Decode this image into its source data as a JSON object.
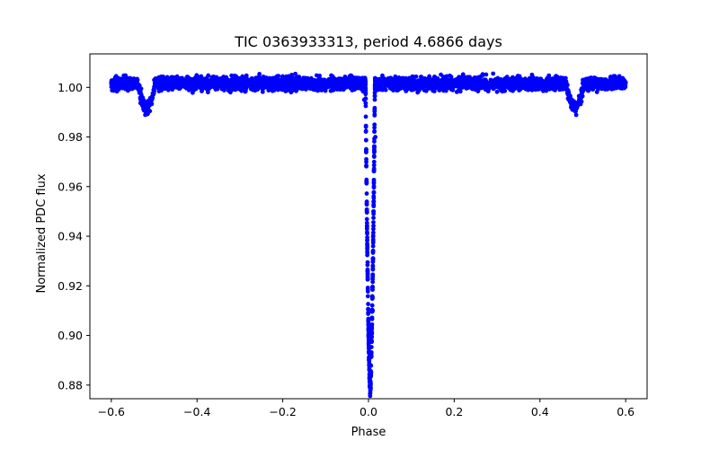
{
  "chart_data": {
    "type": "scatter",
    "title": "TIC 0363933313, period 4.6866 days",
    "xlabel": "Phase",
    "ylabel": "Normalized PDC flux",
    "xlim": [
      -0.65,
      0.65
    ],
    "ylim": [
      0.8745,
      1.0135
    ],
    "x_ticks": [
      {
        "value": -0.6,
        "label": "−0.6"
      },
      {
        "value": -0.4,
        "label": "−0.4"
      },
      {
        "value": -0.2,
        "label": "−0.2"
      },
      {
        "value": 0.0,
        "label": "0.0"
      },
      {
        "value": 0.2,
        "label": "0.2"
      },
      {
        "value": 0.4,
        "label": "0.4"
      },
      {
        "value": 0.6,
        "label": "0.6"
      }
    ],
    "y_ticks": [
      {
        "value": 0.88,
        "label": "0.88"
      },
      {
        "value": 0.9,
        "label": "0.90"
      },
      {
        "value": 0.92,
        "label": "0.92"
      },
      {
        "value": 0.94,
        "label": "0.94"
      },
      {
        "value": 0.96,
        "label": "0.96"
      },
      {
        "value": 0.98,
        "label": "0.98"
      },
      {
        "value": 1.0,
        "label": "1.00"
      }
    ],
    "grid": false,
    "marker_color": "#0000ff",
    "series": [
      {
        "name": "PDC flux",
        "phase_range": [
          -0.6,
          0.6
        ],
        "baseline_flux": 1.0015,
        "noise_amplitude": 0.0022,
        "primary_eclipse": {
          "phase": 0.004,
          "min_flux": 0.879
        },
        "secondary_eclipses": [
          {
            "phase": -0.518,
            "min_flux": 0.992
          },
          {
            "phase": 0.482,
            "min_flux": 0.992
          }
        ],
        "sample_points": [
          {
            "x": -0.6,
            "y": 1.002
          },
          {
            "x": -0.54,
            "y": 1.003
          },
          {
            "x": -0.518,
            "y": 0.992
          },
          {
            "x": -0.5,
            "y": 1.003
          },
          {
            "x": -0.3,
            "y": 1.002
          },
          {
            "x": -0.1,
            "y": 1.002
          },
          {
            "x": -0.01,
            "y": 0.995
          },
          {
            "x": 0.0,
            "y": 0.9
          },
          {
            "x": 0.004,
            "y": 0.879
          },
          {
            "x": 0.01,
            "y": 0.91
          },
          {
            "x": 0.016,
            "y": 0.98
          },
          {
            "x": 0.02,
            "y": 0.999
          },
          {
            "x": 0.2,
            "y": 1.002
          },
          {
            "x": 0.4,
            "y": 1.001
          },
          {
            "x": 0.482,
            "y": 0.992
          },
          {
            "x": 0.5,
            "y": 1.003
          },
          {
            "x": 0.6,
            "y": 1.002
          }
        ]
      }
    ]
  }
}
